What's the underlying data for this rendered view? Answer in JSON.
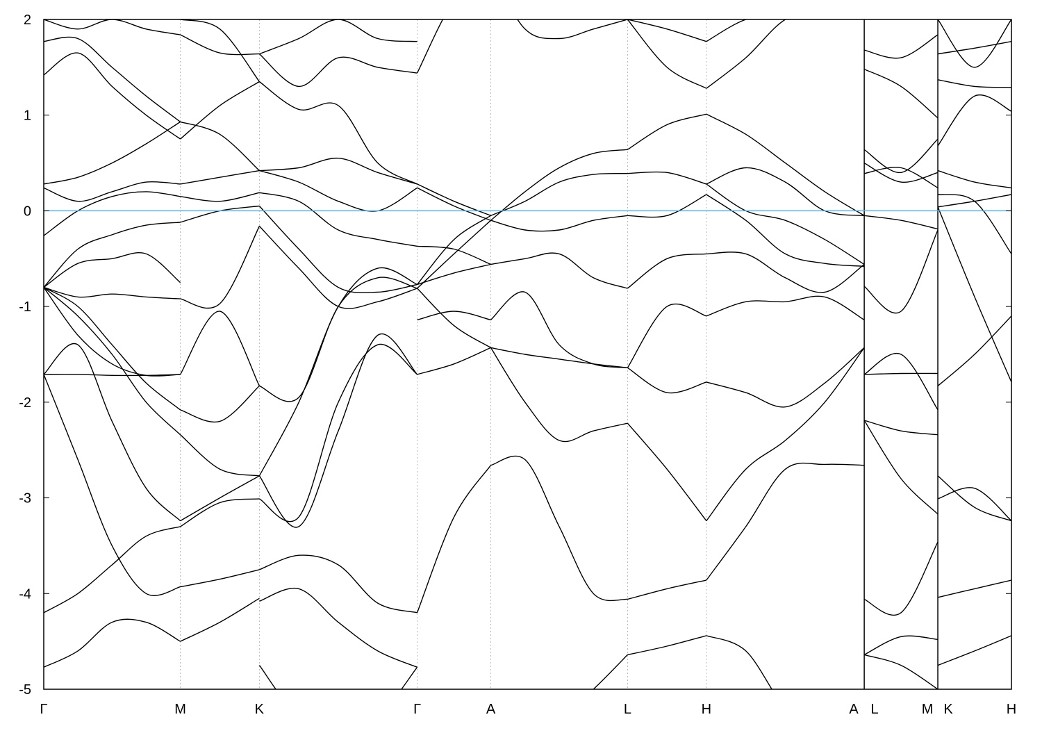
{
  "chart_data": {
    "type": "line",
    "title": "",
    "xlabel": "",
    "ylabel": "",
    "ylim": [
      -5,
      2
    ],
    "xlim": [
      0,
      4.089
    ],
    "grid": "vertical dashed lines at high-symmetry points",
    "legend": "none",
    "yticks": [
      -5,
      -4,
      -3,
      -2,
      -1,
      0,
      1,
      2
    ],
    "ytick_labels": [
      "-5",
      "-4",
      "-3",
      "-2",
      "-1",
      "0",
      "1",
      "2"
    ],
    "xticks": [
      {
        "k": 0,
        "label": "Γ"
      },
      {
        "k": 0.577,
        "label": "M"
      },
      {
        "k": 0.911,
        "label": "K"
      },
      {
        "k": 1.578,
        "label": "Γ"
      },
      {
        "k": 1.889,
        "label": "A"
      },
      {
        "k": 2.467,
        "label": "L"
      },
      {
        "k": 2.8,
        "label": "H"
      },
      {
        "k": 3.467,
        "label": "A"
      },
      {
        "k": 3.467,
        "label": "L"
      },
      {
        "k": 3.778,
        "label": "M"
      },
      {
        "k": 3.778,
        "label": "K"
      },
      {
        "k": 4.089,
        "label": "H"
      }
    ],
    "path_breaks": [
      3.467,
      3.778
    ],
    "fermi_level": 0,
    "colors": {
      "bands": "#000000",
      "fermi_level": "#56b4e9",
      "grid": "#aaaaaa"
    },
    "segments": [
      {
        "from": "Γ",
        "to": "M",
        "k": [
          0,
          0.577
        ],
        "bands": [
          [
            -4.77,
            -4.6,
            -4.3,
            -4.3,
            -4.5
          ],
          [
            -4.2,
            -4.0,
            -3.7,
            -3.4,
            -3.3
          ],
          [
            -1.71,
            -2.6,
            -3.5,
            -4.0,
            -3.93
          ],
          [
            -1.71,
            -1.4,
            -2.2,
            -2.9,
            -3.24
          ],
          [
            -1.71,
            -1.71,
            -1.72,
            -1.72,
            -1.71
          ],
          [
            -0.8,
            -1.3,
            -1.6,
            -1.72,
            -1.71
          ],
          [
            -0.8,
            -1.0,
            -1.4,
            -1.8,
            -2.08
          ],
          [
            -0.8,
            -1.1,
            -1.5,
            -2.0,
            -2.34
          ],
          [
            -0.8,
            -0.9,
            -0.87,
            -0.9,
            -0.92
          ],
          [
            -0.8,
            -0.55,
            -0.5,
            -0.45,
            -0.75
          ],
          [
            -0.8,
            -0.4,
            -0.25,
            -0.15,
            -0.12
          ],
          [
            -0.26,
            0.0,
            0.15,
            0.2,
            0.15
          ],
          [
            0.24,
            0.1,
            0.2,
            0.3,
            0.28
          ],
          [
            0.28,
            0.35,
            0.5,
            0.7,
            0.93
          ],
          [
            1.42,
            1.65,
            1.3,
            1.0,
            0.75
          ],
          [
            1.77,
            1.8,
            1.5,
            1.2,
            0.93
          ],
          [
            2.0,
            1.9,
            2.0,
            1.9,
            1.84
          ]
        ]
      },
      {
        "from": "M",
        "to": "K",
        "k": [
          0.577,
          0.911
        ],
        "bands": [
          [
            -4.5,
            -4.3,
            -4.05
          ],
          [
            -3.93,
            -3.85,
            -3.75
          ],
          [
            -3.3,
            -3.05,
            -3.01
          ],
          [
            -3.24,
            -3.0,
            -2.77
          ],
          [
            -2.34,
            -2.7,
            -2.77
          ],
          [
            -2.08,
            -2.2,
            -1.83
          ],
          [
            -1.71,
            -1.05,
            -1.83
          ],
          [
            -0.92,
            -0.97,
            -0.16
          ],
          [
            -0.12,
            0.0,
            0.05
          ],
          [
            0.15,
            0.1,
            0.19
          ],
          [
            0.28,
            0.35,
            0.42
          ],
          [
            0.93,
            0.8,
            0.42
          ],
          [
            0.75,
            1.1,
            1.35
          ],
          [
            1.84,
            1.65,
            1.64
          ],
          [
            2.0,
            1.9,
            1.35
          ]
        ]
      },
      {
        "from": "K",
        "to": "Γ",
        "k": [
          0.911,
          1.578
        ],
        "bands": [
          [
            -4.75,
            -5.3,
            -5.5,
            -5.3,
            -4.77
          ],
          [
            -4.08,
            -3.95,
            -4.3,
            -4.6,
            -4.77
          ],
          [
            -3.75,
            -3.6,
            -3.7,
            -4.1,
            -4.2
          ],
          [
            -3.01,
            -3.2,
            -2.0,
            -1.4,
            -1.71
          ],
          [
            -2.77,
            -3.3,
            -2.3,
            -1.3,
            -1.71
          ],
          [
            -1.83,
            -1.95,
            -1.0,
            -0.7,
            -0.81
          ],
          [
            -2.77,
            -2.0,
            -1.0,
            -0.6,
            -0.77
          ],
          [
            -0.16,
            -0.6,
            -1.0,
            -0.95,
            -0.81
          ],
          [
            0.05,
            -0.4,
            -0.8,
            -0.85,
            -0.77
          ],
          [
            0.19,
            0.1,
            -0.2,
            -0.3,
            -0.37
          ],
          [
            0.42,
            0.3,
            0.1,
            0.0,
            0.24
          ],
          [
            0.42,
            0.45,
            0.55,
            0.4,
            0.28
          ],
          [
            1.35,
            1.06,
            1.1,
            0.5,
            0.28
          ],
          [
            1.64,
            1.3,
            1.6,
            1.5,
            1.44
          ],
          [
            1.64,
            1.8,
            2.0,
            1.8,
            1.77
          ]
        ]
      },
      {
        "from": "Γ",
        "to": "A",
        "k": [
          1.578,
          1.889
        ],
        "bands": [
          [
            -4.2,
            -3.2,
            -2.66
          ],
          [
            -1.71,
            -1.6,
            -1.43
          ],
          [
            -0.81,
            -1.2,
            -1.43
          ],
          [
            -1.14,
            -1.05,
            -1.14
          ],
          [
            -0.77,
            -0.65,
            -0.56
          ],
          [
            -0.81,
            -0.45,
            -0.1
          ],
          [
            -0.77,
            -0.3,
            -0.05
          ],
          [
            -0.37,
            -0.4,
            -0.56
          ],
          [
            0.28,
            0.1,
            -0.05
          ],
          [
            0.24,
            0.05,
            -0.1
          ],
          [
            1.44,
            2.2,
            2.5
          ]
        ]
      },
      {
        "from": "A",
        "to": "L",
        "k": [
          1.889,
          2.467
        ],
        "bands": [
          [
            -2.66,
            -2.6,
            -3.3,
            -4.0,
            -4.06
          ],
          [
            -5.5,
            -5.5,
            -5.3,
            -5.0,
            -4.64
          ],
          [
            -1.43,
            -2.0,
            -2.4,
            -2.3,
            -2.22
          ],
          [
            -1.43,
            -1.5,
            -1.55,
            -1.6,
            -1.64
          ],
          [
            -1.14,
            -0.85,
            -1.4,
            -1.6,
            -1.64
          ],
          [
            -0.56,
            -0.5,
            -0.45,
            -0.7,
            -0.81
          ],
          [
            -0.1,
            -0.2,
            -0.2,
            -0.1,
            -0.05
          ],
          [
            -0.05,
            0.1,
            0.3,
            0.38,
            0.39
          ],
          [
            -0.1,
            0.2,
            0.45,
            0.6,
            0.64
          ],
          [
            2.5,
            1.9,
            1.8,
            1.9,
            2.0
          ]
        ]
      },
      {
        "from": "L",
        "to": "H",
        "k": [
          2.467,
          2.8
        ],
        "bands": [
          [
            -4.64,
            -4.55,
            -4.44
          ],
          [
            -4.06,
            -3.95,
            -3.86
          ],
          [
            -2.22,
            -2.7,
            -3.24
          ],
          [
            -1.64,
            -1.9,
            -1.79
          ],
          [
            -1.64,
            -1.0,
            -1.1
          ],
          [
            -0.81,
            -0.5,
            -0.45
          ],
          [
            -0.05,
            -0.05,
            0.17
          ],
          [
            0.39,
            0.4,
            0.28
          ],
          [
            0.64,
            0.9,
            1.01
          ],
          [
            2.0,
            1.5,
            1.28
          ],
          [
            2.0,
            1.9,
            1.77
          ]
        ]
      },
      {
        "from": "H",
        "to": "A",
        "k": [
          2.8,
          3.467
        ],
        "bands": [
          [
            -4.44,
            -4.6,
            -5.2,
            -5.5,
            -5.5
          ],
          [
            -3.86,
            -3.3,
            -2.7,
            -2.65,
            -2.66
          ],
          [
            -3.24,
            -2.7,
            -2.4,
            -2.0,
            -1.43
          ],
          [
            -1.79,
            -1.9,
            -2.05,
            -1.8,
            -1.43
          ],
          [
            -1.1,
            -0.95,
            -0.95,
            -0.9,
            -1.14
          ],
          [
            -0.45,
            -0.45,
            -0.7,
            -0.85,
            -0.56
          ],
          [
            0.17,
            -0.1,
            -0.45,
            -0.55,
            -0.58
          ],
          [
            0.28,
            0.0,
            -0.1,
            -0.3,
            -0.56
          ],
          [
            0.28,
            0.45,
            0.3,
            0.0,
            -0.05
          ],
          [
            1.01,
            0.8,
            0.5,
            0.2,
            -0.05
          ],
          [
            1.28,
            1.6,
            2.0,
            2.1,
            2.1
          ],
          [
            1.77,
            2.0,
            2.05,
            2.1,
            2.1
          ]
        ]
      },
      {
        "from": "L",
        "to": "M",
        "k": [
          3.467,
          3.778
        ],
        "bands": [
          [
            -4.64,
            -4.75,
            -5.0
          ],
          [
            -4.64,
            -4.45,
            -4.48
          ],
          [
            -4.06,
            -4.2,
            -3.46
          ],
          [
            -2.19,
            -2.3,
            -2.34
          ],
          [
            -2.19,
            -2.8,
            -3.17
          ],
          [
            -1.71,
            -1.7,
            -1.7
          ],
          [
            -1.71,
            -1.5,
            -2.08
          ],
          [
            -0.79,
            -1.05,
            -0.2
          ],
          [
            -0.05,
            -0.1,
            -0.19
          ],
          [
            0.39,
            0.45,
            0.24
          ],
          [
            0.5,
            0.3,
            0.4
          ],
          [
            0.64,
            0.4,
            0.75
          ],
          [
            1.48,
            1.3,
            0.97
          ],
          [
            1.68,
            1.6,
            1.84
          ]
        ]
      },
      {
        "from": "K",
        "to": "H",
        "k": [
          3.778,
          4.089
        ],
        "bands": [
          [
            -4.75,
            -4.6,
            -4.44
          ],
          [
            -4.04,
            -3.95,
            -3.86
          ],
          [
            -3.01,
            -2.9,
            -3.24
          ],
          [
            -2.77,
            -3.1,
            -3.24
          ],
          [
            -1.83,
            -1.5,
            -1.1
          ],
          [
            0.04,
            -0.9,
            -1.79
          ],
          [
            0.04,
            0.1,
            0.17
          ],
          [
            0.17,
            0.1,
            -0.45
          ],
          [
            0.42,
            0.3,
            0.24
          ],
          [
            0.68,
            1.2,
            1.04
          ],
          [
            1.37,
            1.3,
            1.29
          ],
          [
            1.64,
            1.7,
            1.77
          ],
          [
            2.0,
            1.5,
            2.0
          ]
        ]
      }
    ]
  }
}
